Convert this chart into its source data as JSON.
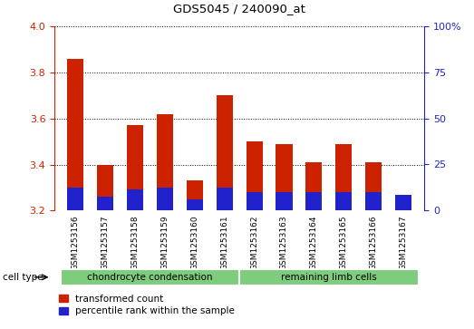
{
  "title": "GDS5045 / 240090_at",
  "samples": [
    "GSM1253156",
    "GSM1253157",
    "GSM1253158",
    "GSM1253159",
    "GSM1253160",
    "GSM1253161",
    "GSM1253162",
    "GSM1253163",
    "GSM1253164",
    "GSM1253165",
    "GSM1253166",
    "GSM1253167"
  ],
  "red_values": [
    3.86,
    3.4,
    3.57,
    3.62,
    3.33,
    3.7,
    3.5,
    3.49,
    3.41,
    3.49,
    3.41,
    3.27
  ],
  "blue_values": [
    3.3,
    3.26,
    3.29,
    3.3,
    3.25,
    3.3,
    3.28,
    3.28,
    3.28,
    3.28,
    3.28,
    3.27
  ],
  "y_min": 3.2,
  "y_max": 4.0,
  "y_ticks": [
    3.2,
    3.4,
    3.6,
    3.8,
    4.0
  ],
  "y2_ticks_pct": [
    0,
    25,
    50,
    75,
    100
  ],
  "y2_labels": [
    "0",
    "25",
    "50",
    "75",
    "100%"
  ],
  "groups": [
    {
      "label": "chondrocyte condensation",
      "start": 0,
      "end": 5,
      "color": "#7ECC7E"
    },
    {
      "label": "remaining limb cells",
      "start": 6,
      "end": 11,
      "color": "#7ECC7E"
    }
  ],
  "cell_type_label": "cell type",
  "legend_red": "transformed count",
  "legend_blue": "percentile rank within the sample",
  "bar_color_red": "#CC2200",
  "bar_color_blue": "#2222CC",
  "sample_bg_color": "#C8C8C8",
  "plot_bg": "#FFFFFF",
  "grid_color": "#000000",
  "bar_width": 0.55,
  "title_color": "#000000",
  "left_axis_color": "#CC2200",
  "right_axis_color": "#2222CC"
}
